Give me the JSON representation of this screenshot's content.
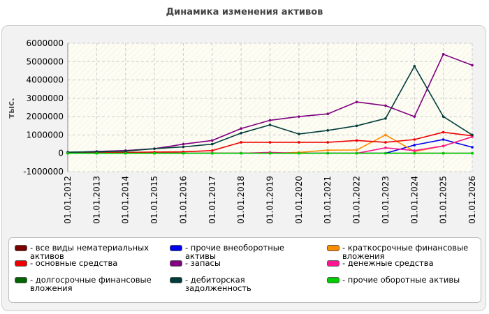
{
  "chart_data": {
    "type": "line",
    "title": "Динамика изменения активов",
    "ylabel": "тыс.",
    "xlabel": "",
    "ylim": [
      -1000000,
      6000000
    ],
    "yticks": [
      -1000000,
      0,
      1000000,
      2000000,
      3000000,
      4000000,
      5000000,
      6000000
    ],
    "grid": true,
    "legend_position": "bottom",
    "categories": [
      "01.01.2012",
      "01.01.2013",
      "01.01.2014",
      "01.01.2015",
      "01.01.2016",
      "01.01.2017",
      "01.01.2018",
      "01.01.2019",
      "01.01.2020",
      "01.01.2021",
      "01.01.2022",
      "01.01.2023",
      "01.01.2024",
      "01.01.2025",
      "01.01.2026"
    ],
    "series": [
      {
        "name": "все виды нематериальных активов",
        "color": "#7a0000",
        "values": [
          0,
          0,
          0,
          0,
          0,
          0,
          0,
          0,
          0,
          0,
          0,
          0,
          0,
          0,
          0
        ]
      },
      {
        "name": "прочие внеоборотные активы",
        "color": "#0000ee",
        "values": [
          0,
          0,
          0,
          0,
          0,
          0,
          0,
          0,
          0,
          0,
          0,
          0,
          450000,
          750000,
          330000
        ]
      },
      {
        "name": "краткосрочные финансовые вложения",
        "color": "#ff8c00",
        "values": [
          0,
          0,
          0,
          0,
          0,
          0,
          0,
          0,
          50000,
          170000,
          180000,
          1000000,
          100000,
          400000,
          900000
        ]
      },
      {
        "name": "основные средства",
        "color": "#ee0000",
        "values": [
          30000,
          40000,
          50000,
          70000,
          80000,
          150000,
          600000,
          600000,
          600000,
          600000,
          700000,
          600000,
          750000,
          1150000,
          950000
        ]
      },
      {
        "name": "запасы",
        "color": "#800080",
        "values": [
          50000,
          100000,
          150000,
          250000,
          500000,
          700000,
          1350000,
          1800000,
          2000000,
          2150000,
          2800000,
          2600000,
          2000000,
          5400000,
          4800000
        ]
      },
      {
        "name": "денежные средства",
        "color": "#ff1493",
        "values": [
          0,
          0,
          0,
          0,
          0,
          0,
          0,
          50000,
          0,
          0,
          0,
          300000,
          150000,
          400000,
          900000
        ]
      },
      {
        "name": "долгосрочные финансовые вложения",
        "color": "#006400",
        "values": [
          0,
          0,
          0,
          0,
          0,
          0,
          0,
          0,
          0,
          0,
          0,
          0,
          0,
          0,
          0
        ]
      },
      {
        "name": "дебиторская задолженность",
        "color": "#003c3c",
        "values": [
          60000,
          80000,
          120000,
          250000,
          350000,
          500000,
          1100000,
          1550000,
          1050000,
          1250000,
          1500000,
          1900000,
          4750000,
          2000000,
          1000000
        ]
      },
      {
        "name": "прочие оборотные активы",
        "color": "#00cc00",
        "values": [
          0,
          0,
          0,
          0,
          0,
          0,
          0,
          0,
          0,
          0,
          0,
          0,
          0,
          0,
          0
        ]
      }
    ]
  }
}
